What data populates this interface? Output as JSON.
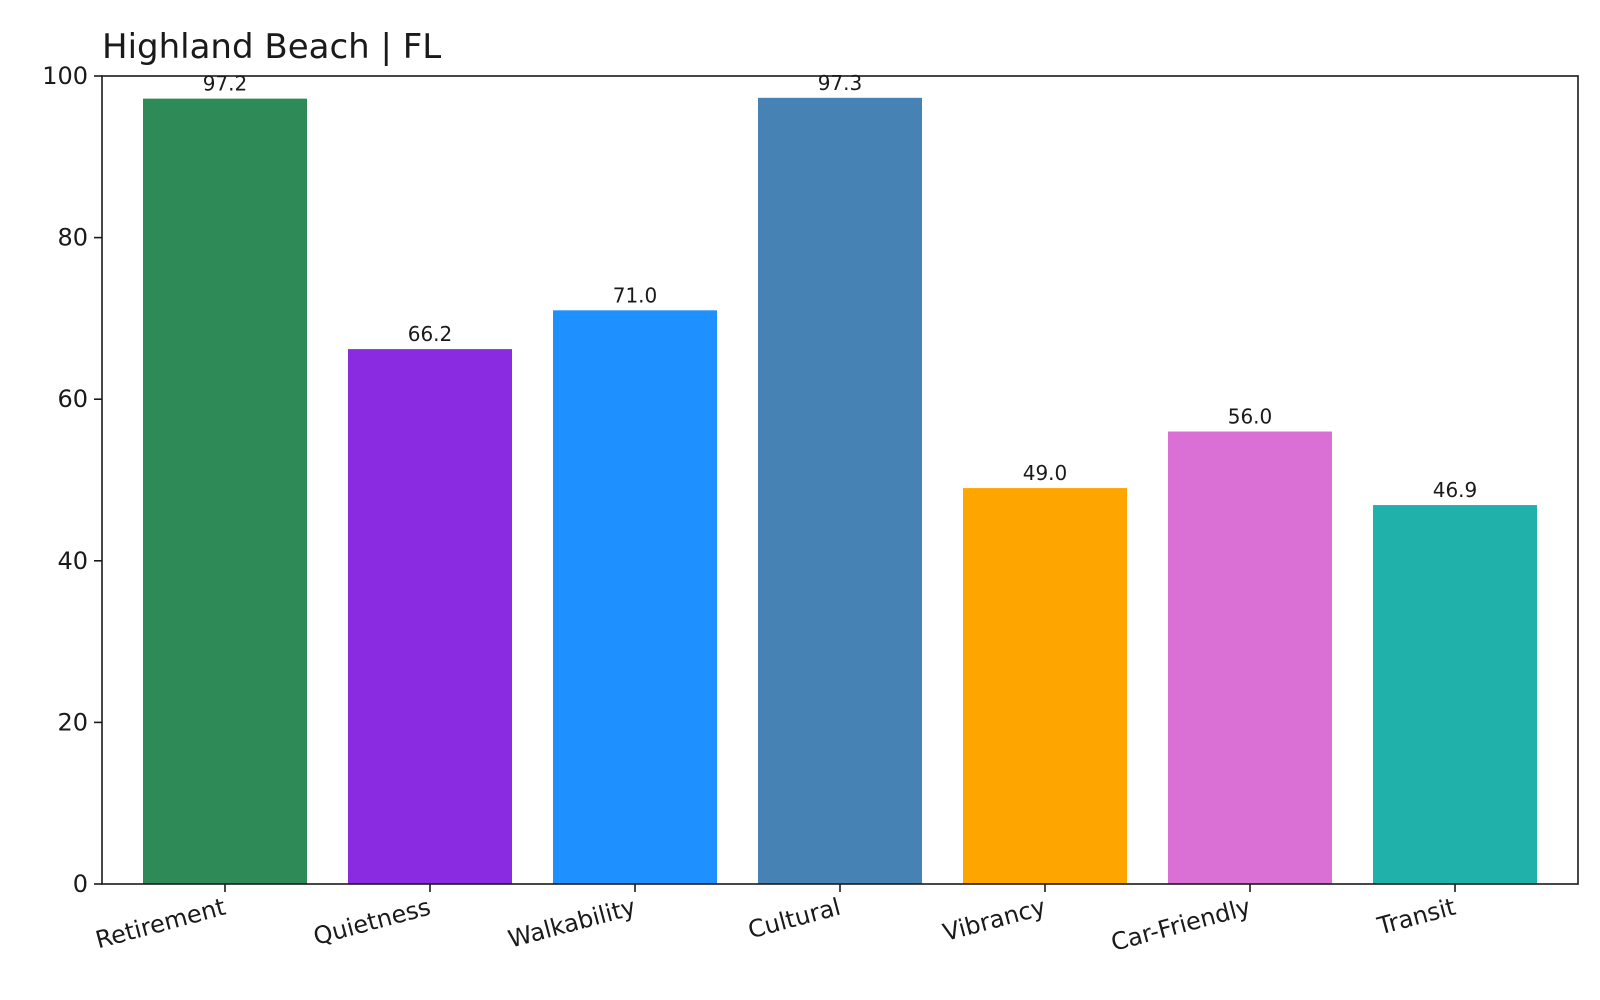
{
  "chart_data": {
    "type": "bar",
    "title": "Highland Beach | FL",
    "xlabel": "",
    "ylabel": "",
    "ylim": [
      0,
      100
    ],
    "yticks": [
      0,
      20,
      40,
      60,
      80,
      100
    ],
    "grid": false,
    "legend": "none",
    "categories": [
      "Retirement",
      "Quietness",
      "Walkability",
      "Cultural",
      "Vibrancy",
      "Car-Friendly",
      "Transit"
    ],
    "values": [
      97.2,
      66.2,
      71.0,
      97.3,
      49.0,
      56.0,
      46.9
    ],
    "value_labels": [
      "97.2",
      "66.2",
      "71.0",
      "97.3",
      "49.0",
      "56.0",
      "46.9"
    ],
    "colors": [
      "#2e8b57",
      "#8a2be2",
      "#1e90ff",
      "#4682b4",
      "#ffa500",
      "#da70d6",
      "#20b2aa"
    ]
  }
}
